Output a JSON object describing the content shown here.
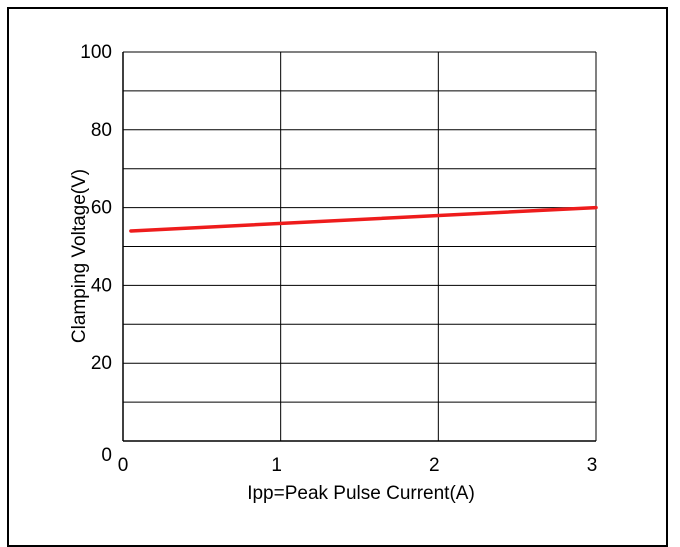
{
  "chart_data": {
    "type": "line",
    "title": "",
    "xlabel": "Ipp=Peak Pulse Current(A)",
    "ylabel": "Clamping Voltage(V)",
    "xlim": [
      0,
      3
    ],
    "ylim": [
      0,
      100
    ],
    "x_ticks": [
      "0",
      "1",
      "2",
      "3"
    ],
    "y_ticks": [
      "0",
      "20",
      "40",
      "60",
      "80",
      "100"
    ],
    "grid": true,
    "legend": "none",
    "series": [
      {
        "color": "#ee1c1c",
        "x": [
          0.05,
          3.0
        ],
        "y": [
          54,
          60
        ]
      }
    ]
  }
}
